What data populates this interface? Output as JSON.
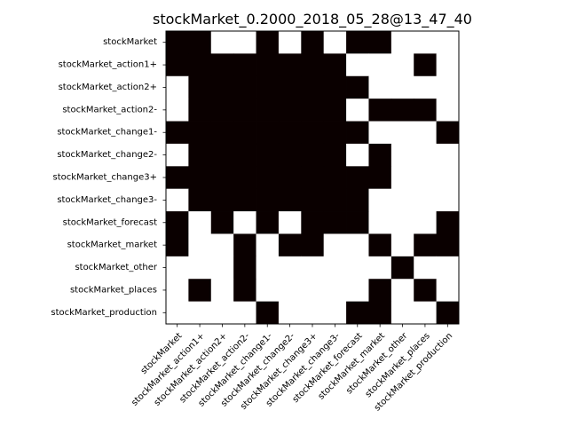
{
  "chart_data": {
    "type": "heatmap",
    "title": "stockMarket_0.2000_2018_05_28@13_47_40",
    "xlabel": "",
    "ylabel": "",
    "grid": false,
    "legend": "none",
    "colors": {
      "on": "#0a0000",
      "off": "#ffffff"
    },
    "row_labels": [
      "stockMarket",
      "stockMarket_action1+",
      "stockMarket_action2+",
      "stockMarket_action2-",
      "stockMarket_change1-",
      "stockMarket_change2-",
      "stockMarket_change3+",
      "stockMarket_change3-",
      "stockMarket_forecast",
      "stockMarket_market",
      "stockMarket_other",
      "stockMarket_places",
      "stockMarket_production"
    ],
    "col_labels": [
      "stockMarket",
      "stockMarket_action1+",
      "stockMarket_action2+",
      "stockMarket_action2-",
      "stockMarket_change1-",
      "stockMarket_change2-",
      "stockMarket_change3+",
      "stockMarket_change3-",
      "stockMarket_forecast",
      "stockMarket_market",
      "stockMarket_other",
      "stockMarket_places",
      "stockMarket_production"
    ],
    "matrix": [
      [
        1,
        1,
        0,
        0,
        1,
        0,
        1,
        0,
        1,
        1,
        0,
        0,
        0
      ],
      [
        1,
        1,
        1,
        1,
        1,
        1,
        1,
        1,
        0,
        0,
        0,
        1,
        0
      ],
      [
        0,
        1,
        1,
        1,
        1,
        1,
        1,
        1,
        1,
        0,
        0,
        0,
        0
      ],
      [
        0,
        1,
        1,
        1,
        1,
        1,
        1,
        1,
        0,
        1,
        1,
        1,
        0
      ],
      [
        1,
        1,
        1,
        1,
        1,
        1,
        1,
        1,
        1,
        0,
        0,
        0,
        1
      ],
      [
        0,
        1,
        1,
        1,
        1,
        1,
        1,
        1,
        0,
        1,
        0,
        0,
        0
      ],
      [
        1,
        1,
        1,
        1,
        1,
        1,
        1,
        1,
        1,
        1,
        0,
        0,
        0
      ],
      [
        0,
        1,
        1,
        1,
        1,
        1,
        1,
        1,
        1,
        0,
        0,
        0,
        0
      ],
      [
        1,
        0,
        1,
        0,
        1,
        0,
        1,
        1,
        1,
        0,
        0,
        0,
        1
      ],
      [
        1,
        0,
        0,
        1,
        0,
        1,
        1,
        0,
        0,
        1,
        0,
        1,
        1
      ],
      [
        0,
        0,
        0,
        1,
        0,
        0,
        0,
        0,
        0,
        0,
        1,
        0,
        0
      ],
      [
        0,
        1,
        0,
        1,
        0,
        0,
        0,
        0,
        0,
        1,
        0,
        1,
        0
      ],
      [
        0,
        0,
        0,
        0,
        1,
        0,
        0,
        0,
        1,
        1,
        0,
        0,
        1
      ]
    ]
  }
}
